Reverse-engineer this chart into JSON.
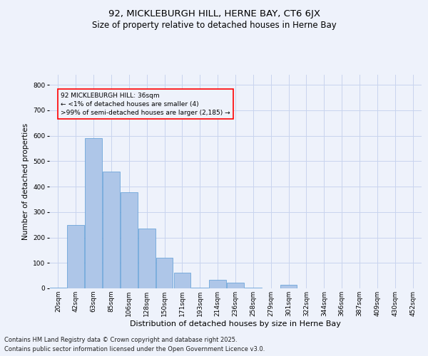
{
  "title1": "92, MICKLEBURGH HILL, HERNE BAY, CT6 6JX",
  "title2": "Size of property relative to detached houses in Herne Bay",
  "xlabel": "Distribution of detached houses by size in Herne Bay",
  "ylabel": "Number of detached properties",
  "categories": [
    "20sqm",
    "42sqm",
    "63sqm",
    "85sqm",
    "106sqm",
    "128sqm",
    "150sqm",
    "171sqm",
    "193sqm",
    "214sqm",
    "236sqm",
    "258sqm",
    "279sqm",
    "301sqm",
    "322sqm",
    "344sqm",
    "366sqm",
    "387sqm",
    "409sqm",
    "430sqm",
    "452sqm"
  ],
  "values": [
    3,
    248,
    590,
    458,
    378,
    235,
    120,
    63,
    2,
    35,
    22,
    2,
    0,
    15,
    0,
    0,
    0,
    0,
    0,
    0,
    0
  ],
  "bar_color": "#aec6e8",
  "bar_edge_color": "#5b9bd5",
  "ylim": [
    0,
    840
  ],
  "yticks": [
    0,
    100,
    200,
    300,
    400,
    500,
    600,
    700,
    800
  ],
  "annotation_text": "92 MICKLEBURGH HILL: 36sqm\n← <1% of detached houses are smaller (4)\n>99% of semi-detached houses are larger (2,185) →",
  "background_color": "#eef2fb",
  "grid_color": "#c8d4ee",
  "footer_line1": "Contains HM Land Registry data © Crown copyright and database right 2025.",
  "footer_line2": "Contains public sector information licensed under the Open Government Licence v3.0.",
  "title1_fontsize": 9.5,
  "title2_fontsize": 8.5,
  "xlabel_fontsize": 8,
  "ylabel_fontsize": 7.5,
  "tick_fontsize": 6.5,
  "annotation_fontsize": 6.5,
  "footer_fontsize": 6
}
